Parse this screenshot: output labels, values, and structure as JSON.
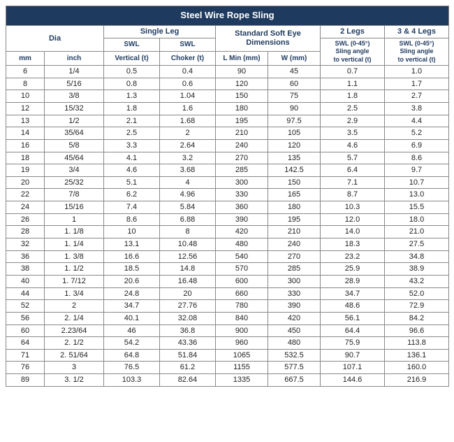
{
  "title": "Steel Wire Rope Sling",
  "headers": {
    "dia": "Dia",
    "single_leg": "Single Leg",
    "std_eye": "Standard Soft Eye Dimensions",
    "legs2": "2 Legs",
    "legs34": "3 & 4 Legs",
    "swl": "SWL",
    "swl_0_45": "SWL (0-45°)",
    "sling_angle": "Sling angle",
    "to_vertical": "to vertical (t)",
    "mm": "mm",
    "inch": "inch",
    "vertical": "Vertical (t)",
    "choker": "Choker (t)",
    "lmin": "L Min (mm)",
    "w": "W (mm)"
  },
  "rows": [
    {
      "mm": "6",
      "inch": "1/4",
      "v": "0.5",
      "c": "0.4",
      "l": "90",
      "w": "45",
      "l2": "0.7",
      "l34": "1.0"
    },
    {
      "mm": "8",
      "inch": "5/16",
      "v": "0.8",
      "c": "0.6",
      "l": "120",
      "w": "60",
      "l2": "1.1",
      "l34": "1.7"
    },
    {
      "mm": "10",
      "inch": "3/8",
      "v": "1.3",
      "c": "1.04",
      "l": "150",
      "w": "75",
      "l2": "1.8",
      "l34": "2.7"
    },
    {
      "mm": "12",
      "inch": "15/32",
      "v": "1.8",
      "c": "1.6",
      "l": "180",
      "w": "90",
      "l2": "2.5",
      "l34": "3.8"
    },
    {
      "mm": "13",
      "inch": "1/2",
      "v": "2.1",
      "c": "1.68",
      "l": "195",
      "w": "97.5",
      "l2": "2.9",
      "l34": "4.4"
    },
    {
      "mm": "14",
      "inch": "35/64",
      "v": "2.5",
      "c": "2",
      "l": "210",
      "w": "105",
      "l2": "3.5",
      "l34": "5.2"
    },
    {
      "mm": "16",
      "inch": "5/8",
      "v": "3.3",
      "c": "2.64",
      "l": "240",
      "w": "120",
      "l2": "4.6",
      "l34": "6.9"
    },
    {
      "mm": "18",
      "inch": "45/64",
      "v": "4.1",
      "c": "3.2",
      "l": "270",
      "w": "135",
      "l2": "5.7",
      "l34": "8.6"
    },
    {
      "mm": "19",
      "inch": "3/4",
      "v": "4.6",
      "c": "3.68",
      "l": "285",
      "w": "142.5",
      "l2": "6.4",
      "l34": "9.7"
    },
    {
      "mm": "20",
      "inch": "25/32",
      "v": "5.1",
      "c": "4",
      "l": "300",
      "w": "150",
      "l2": "7.1",
      "l34": "10.7"
    },
    {
      "mm": "22",
      "inch": "7/8",
      "v": "6.2",
      "c": "4.96",
      "l": "330",
      "w": "165",
      "l2": "8.7",
      "l34": "13.0"
    },
    {
      "mm": "24",
      "inch": "15/16",
      "v": "7.4",
      "c": "5.84",
      "l": "360",
      "w": "180",
      "l2": "10.3",
      "l34": "15.5"
    },
    {
      "mm": "26",
      "inch": "1",
      "v": "8.6",
      "c": "6.88",
      "l": "390",
      "w": "195",
      "l2": "12.0",
      "l34": "18.0"
    },
    {
      "mm": "28",
      "inch": "1. 1/8",
      "v": "10",
      "c": "8",
      "l": "420",
      "w": "210",
      "l2": "14.0",
      "l34": "21.0"
    },
    {
      "mm": "32",
      "inch": "1. 1/4",
      "v": "13.1",
      "c": "10.48",
      "l": "480",
      "w": "240",
      "l2": "18.3",
      "l34": "27.5"
    },
    {
      "mm": "36",
      "inch": "1. 3/8",
      "v": "16.6",
      "c": "12.56",
      "l": "540",
      "w": "270",
      "l2": "23.2",
      "l34": "34.8"
    },
    {
      "mm": "38",
      "inch": "1. 1/2",
      "v": "18.5",
      "c": "14.8",
      "l": "570",
      "w": "285",
      "l2": "25.9",
      "l34": "38.9"
    },
    {
      "mm": "40",
      "inch": "1. 7/12",
      "v": "20.6",
      "c": "16.48",
      "l": "600",
      "w": "300",
      "l2": "28.9",
      "l34": "43.2"
    },
    {
      "mm": "44",
      "inch": "1. 3/4",
      "v": "24.8",
      "c": "20",
      "l": "660",
      "w": "330",
      "l2": "34.7",
      "l34": "52.0"
    },
    {
      "mm": "52",
      "inch": "2",
      "v": "34.7",
      "c": "27.76",
      "l": "780",
      "w": "390",
      "l2": "48.6",
      "l34": "72.9"
    },
    {
      "mm": "56",
      "inch": "2. 1/4",
      "v": "40.1",
      "c": "32.08",
      "l": "840",
      "w": "420",
      "l2": "56.1",
      "l34": "84.2"
    },
    {
      "mm": "60",
      "inch": "2.23/64",
      "v": "46",
      "c": "36.8",
      "l": "900",
      "w": "450",
      "l2": "64.4",
      "l34": "96.6"
    },
    {
      "mm": "64",
      "inch": "2. 1/2",
      "v": "54.2",
      "c": "43.36",
      "l": "960",
      "w": "480",
      "l2": "75.9",
      "l34": "113.8"
    },
    {
      "mm": "71",
      "inch": "2. 51/64",
      "v": "64.8",
      "c": "51.84",
      "l": "1065",
      "w": "532.5",
      "l2": "90.7",
      "l34": "136.1"
    },
    {
      "mm": "76",
      "inch": "3",
      "v": "76.5",
      "c": "61.2",
      "l": "1155",
      "w": "577.5",
      "l2": "107.1",
      "l34": "160.0"
    },
    {
      "mm": "89",
      "inch": "3. 1/2",
      "v": "103.3",
      "c": "82.64",
      "l": "1335",
      "w": "667.5",
      "l2": "144.6",
      "l34": "216.9"
    }
  ]
}
